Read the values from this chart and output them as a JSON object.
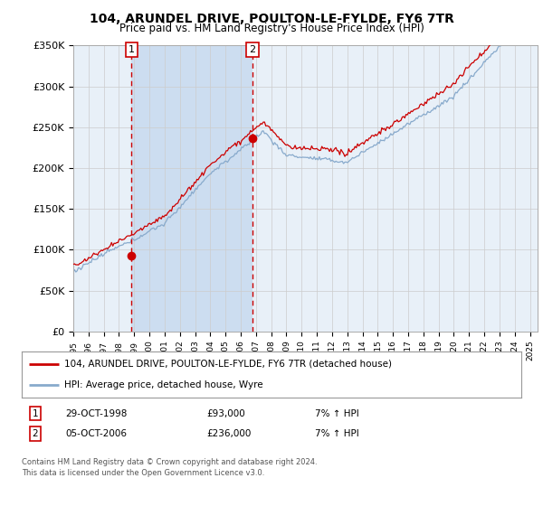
{
  "title": "104, ARUNDEL DRIVE, POULTON-LE-FYLDE, FY6 7TR",
  "subtitle": "Price paid vs. HM Land Registry's House Price Index (HPI)",
  "sale1_date": "29-OCT-1998",
  "sale1_price": 93000,
  "sale1_label": "1",
  "sale2_date": "05-OCT-2006",
  "sale2_price": 236000,
  "sale2_label": "2",
  "sale1_year": 1998.83,
  "sale2_year": 2006.75,
  "legend_line1": "104, ARUNDEL DRIVE, POULTON-LE-FYLDE, FY6 7TR (detached house)",
  "legend_line2": "HPI: Average price, detached house, Wyre",
  "footer": "Contains HM Land Registry data © Crown copyright and database right 2024.\nThis data is licensed under the Open Government Licence v3.0.",
  "ylim": [
    0,
    350000
  ],
  "xlim_start": 1995.0,
  "xlim_end": 2025.5,
  "red_color": "#cc0000",
  "blue_color": "#88aacc",
  "shade_color": "#ccddf0",
  "grid_color": "#cccccc",
  "bg_color": "#e8f0f8",
  "plot_bg": "#ffffff",
  "box_bg": "#f0f0f0"
}
